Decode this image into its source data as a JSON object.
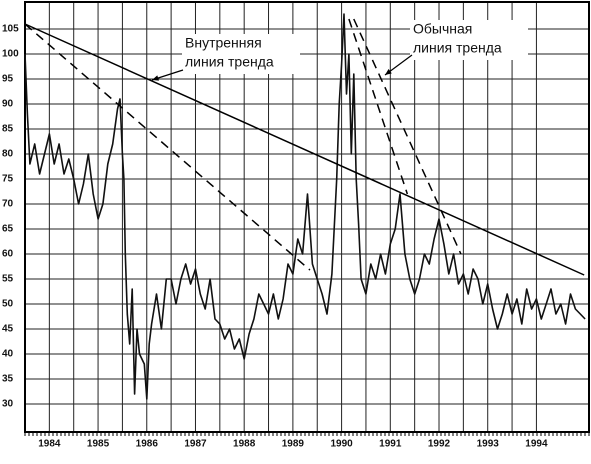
{
  "chart_data": {
    "type": "line",
    "color": "#111111",
    "grid": true,
    "xlim": [
      1984,
      1995.6
    ],
    "ylim": [
      24.4,
      110.4
    ],
    "xticks": [
      {
        "value": 1984.5,
        "label": "1984"
      },
      {
        "value": 1985.5,
        "label": "1985"
      },
      {
        "value": 1986.5,
        "label": "1986"
      },
      {
        "value": 1987.5,
        "label": "1987"
      },
      {
        "value": 1988.5,
        "label": "1988"
      },
      {
        "value": 1989.5,
        "label": "1989"
      },
      {
        "value": 1990.5,
        "label": "1990"
      },
      {
        "value": 1991.5,
        "label": "1991"
      },
      {
        "value": 1992.5,
        "label": "1992"
      },
      {
        "value": 1993.5,
        "label": "1993"
      },
      {
        "value": 1994.5,
        "label": "1994"
      }
    ],
    "yticks": [
      30,
      35,
      40,
      45,
      50,
      55,
      60,
      65,
      70,
      75,
      80,
      85,
      90,
      95,
      100,
      105
    ],
    "x": [
      1984.0,
      1984.05,
      1984.1,
      1984.2,
      1984.3,
      1984.4,
      1984.5,
      1984.6,
      1984.7,
      1984.8,
      1984.9,
      1985.0,
      1985.1,
      1985.2,
      1985.3,
      1985.4,
      1985.5,
      1985.6,
      1985.7,
      1985.8,
      1985.9,
      1985.95,
      1986.0,
      1986.03,
      1986.06,
      1986.1,
      1986.15,
      1986.2,
      1986.25,
      1986.3,
      1986.35,
      1986.45,
      1986.5,
      1986.55,
      1986.6,
      1986.7,
      1986.8,
      1986.9,
      1987.0,
      1987.1,
      1987.2,
      1987.3,
      1987.4,
      1987.5,
      1987.6,
      1987.7,
      1987.8,
      1987.9,
      1988.0,
      1988.1,
      1988.2,
      1988.3,
      1988.4,
      1988.5,
      1988.6,
      1988.7,
      1988.8,
      1988.9,
      1989.0,
      1989.1,
      1989.2,
      1989.3,
      1989.4,
      1989.5,
      1989.6,
      1989.7,
      1989.8,
      1989.9,
      1990.0,
      1990.1,
      1990.2,
      1990.3,
      1990.4,
      1990.45,
      1990.5,
      1990.55,
      1990.6,
      1990.65,
      1990.7,
      1990.75,
      1990.8,
      1990.85,
      1990.9,
      1991.0,
      1991.1,
      1991.2,
      1991.3,
      1991.4,
      1991.5,
      1991.6,
      1991.7,
      1991.8,
      1991.9,
      1992.0,
      1992.1,
      1992.2,
      1992.3,
      1992.4,
      1992.5,
      1992.6,
      1992.7,
      1992.8,
      1992.9,
      1993.0,
      1993.1,
      1993.2,
      1993.3,
      1993.4,
      1993.5,
      1993.6,
      1993.7,
      1993.8,
      1993.9,
      1994.0,
      1994.1,
      1994.2,
      1994.3,
      1994.4,
      1994.5,
      1994.6,
      1994.7,
      1994.8,
      1994.9,
      1995.0,
      1995.1,
      1995.2,
      1995.3,
      1995.4,
      1995.5
    ],
    "values": [
      100,
      88,
      78,
      82,
      76,
      80,
      84,
      78,
      82,
      76,
      79,
      75,
      70,
      74,
      80,
      72,
      67,
      70,
      78,
      82,
      89,
      91,
      80,
      75,
      60,
      48,
      42,
      53,
      32,
      45,
      40,
      38,
      31,
      42,
      46,
      52,
      45,
      55,
      55,
      50,
      55,
      58,
      54,
      57,
      52,
      49,
      55,
      47,
      46,
      43,
      45,
      41,
      43,
      39,
      44,
      47,
      52,
      50,
      48,
      52,
      47,
      51,
      58,
      56,
      63,
      60,
      72,
      58,
      55,
      52,
      48,
      56,
      75,
      90,
      98,
      108,
      92,
      100,
      80,
      96,
      75,
      66,
      55,
      52,
      58,
      55,
      60,
      56,
      62,
      65,
      72,
      60,
      55,
      52,
      55,
      60,
      58,
      63,
      67,
      62,
      56,
      60,
      54,
      56,
      52,
      57,
      55,
      50,
      54,
      49,
      45,
      48,
      52,
      48,
      51,
      46,
      53,
      49,
      51,
      47,
      50,
      53,
      48,
      50,
      46,
      52,
      49,
      48,
      47
    ],
    "trendlines": [
      {
        "x": [
          1984.0,
          1995.48
        ],
        "values": [
          106,
          55.8
        ],
        "dashed": false
      },
      {
        "x": [
          1984.0,
          1989.85
        ],
        "values": [
          106,
          56.8
        ],
        "dashed": true
      },
      {
        "x": [
          1990.65,
          1991.85
        ],
        "values": [
          107,
          72
        ],
        "dashed": true
      },
      {
        "x": [
          1990.75,
          1992.95
        ],
        "values": [
          107,
          60
        ],
        "dashed": true
      }
    ],
    "annotations": [
      {
        "text": [
          "Внутренняя",
          "линия тренда"
        ]
      },
      {
        "text": [
          "Обычная",
          "линия тренда"
        ]
      }
    ]
  }
}
